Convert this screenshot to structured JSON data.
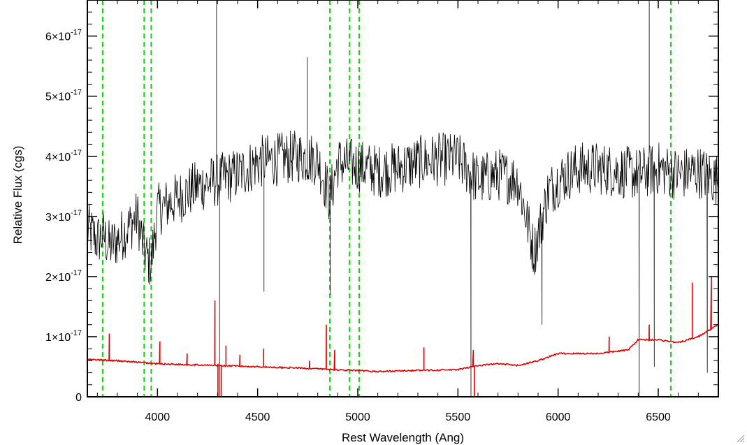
{
  "chart_data": {
    "type": "line",
    "title": "",
    "xlabel": "Rest Wavelength (Ang)",
    "ylabel": "Relative Flux (cgs)",
    "xlim": [
      3650,
      6800
    ],
    "ylim": [
      0,
      6.6e-17
    ],
    "x_ticks": [
      {
        "value": 4000,
        "label": "4000"
      },
      {
        "value": 4500,
        "label": "4500"
      },
      {
        "value": 5000,
        "label": "5000"
      },
      {
        "value": 5500,
        "label": "5500"
      },
      {
        "value": 6000,
        "label": "6000"
      },
      {
        "value": 6500,
        "label": "6500"
      }
    ],
    "y_ticks": [
      {
        "value": 0,
        "mantissa": "0",
        "exponent": ""
      },
      {
        "value": 1e-17,
        "mantissa": "1×10",
        "exponent": "-17"
      },
      {
        "value": 2e-17,
        "mantissa": "2×10",
        "exponent": "-17"
      },
      {
        "value": 3e-17,
        "mantissa": "3×10",
        "exponent": "-17"
      },
      {
        "value": 4e-17,
        "mantissa": "4×10",
        "exponent": "-17"
      },
      {
        "value": 5e-17,
        "mantissa": "5×10",
        "exponent": "-17"
      },
      {
        "value": 6e-17,
        "mantissa": "6×10",
        "exponent": "-17"
      }
    ],
    "grid": false,
    "legend": "none",
    "series": [
      {
        "color": "#000000",
        "style": "noisy spectrum",
        "x": [
          3650,
          3700,
          3727,
          3760,
          3800,
          3850,
          3900,
          3935,
          3968,
          4000,
          4100,
          4200,
          4300,
          4400,
          4500,
          4600,
          4700,
          4800,
          4861,
          4900,
          5000,
          5100,
          5200,
          5300,
          5400,
          5500,
          5600,
          5700,
          5800,
          5880,
          5950,
          6000,
          6100,
          6200,
          6300,
          6400,
          6500,
          6600,
          6700,
          6800
        ],
        "values": [
          2.8e-17,
          2.6e-17,
          2.7e-17,
          2.5e-17,
          2.6e-17,
          2.8e-17,
          3e-17,
          2.4e-17,
          2.2e-17,
          3.1e-17,
          3.3e-17,
          3.5e-17,
          3.6e-17,
          3.7e-17,
          3.9e-17,
          3.95e-17,
          4e-17,
          3.95e-17,
          3.3e-17,
          3.9e-17,
          3.85e-17,
          3.75e-17,
          3.8e-17,
          3.9e-17,
          3.95e-17,
          3.95e-17,
          3.6e-17,
          3.7e-17,
          3.6e-17,
          2.4e-17,
          3.4e-17,
          3.6e-17,
          3.8e-17,
          3.8e-17,
          3.75e-17,
          3.7e-17,
          3.8e-17,
          3.7e-17,
          3.75e-17,
          3.6e-17
        ],
        "noise_amplitude": 4.5e-18,
        "spikes": [
          {
            "x": 4295,
            "y": 6.6e-17
          },
          {
            "x": 4310,
            "y": 0.0
          },
          {
            "x": 4532,
            "y": 1.75e-17
          },
          {
            "x": 4748,
            "y": 5.65e-17
          },
          {
            "x": 4862,
            "y": 1.7e-17
          },
          {
            "x": 5565,
            "y": 0.0
          },
          {
            "x": 5920,
            "y": 1.2e-17
          },
          {
            "x": 6405,
            "y": 0.0
          },
          {
            "x": 6455,
            "y": 6.6e-17
          },
          {
            "x": 6480,
            "y": 5e-18
          },
          {
            "x": 6745,
            "y": 4e-18
          }
        ]
      },
      {
        "color": "#e00000",
        "style": "sky/error spectrum",
        "x": [
          3650,
          3800,
          4000,
          4200,
          4300,
          4500,
          4700,
          4900,
          5100,
          5300,
          5500,
          5600,
          5700,
          5800,
          5900,
          6000,
          6200,
          6350,
          6400,
          6500,
          6600,
          6700,
          6800
        ],
        "values": [
          6.2e-18,
          6e-18,
          5.5e-18,
          5.3e-18,
          5.2e-18,
          5e-18,
          4.8e-18,
          4.5e-18,
          4.2e-18,
          4.4e-18,
          4.5e-18,
          5.2e-18,
          5.5e-18,
          5.2e-18,
          6e-18,
          7.2e-18,
          7.2e-18,
          7.8e-18,
          9.5e-18,
          9.5e-18,
          9e-18,
          1e-17,
          1.2e-17
        ],
        "noise_amplitude": 1.2e-19,
        "spikes": [
          {
            "x": 3760,
            "y": 1.05e-17
          },
          {
            "x": 4012,
            "y": 9.2e-18
          },
          {
            "x": 4148,
            "y": 7.2e-18
          },
          {
            "x": 4287,
            "y": 1.6e-17
          },
          {
            "x": 4302,
            "y": -2e-18
          },
          {
            "x": 4318,
            "y": -2e-18
          },
          {
            "x": 4342,
            "y": 8.5e-18
          },
          {
            "x": 4412,
            "y": 7e-18
          },
          {
            "x": 4530,
            "y": 8e-18
          },
          {
            "x": 4760,
            "y": 6e-18
          },
          {
            "x": 4843,
            "y": 1.2e-17
          },
          {
            "x": 4885,
            "y": 7.8e-18
          },
          {
            "x": 5330,
            "y": 8.2e-18
          },
          {
            "x": 5577,
            "y": 7.8e-18
          },
          {
            "x": 5582,
            "y": -2e-18
          },
          {
            "x": 6255,
            "y": 1e-17
          },
          {
            "x": 6455,
            "y": 1.2e-17
          },
          {
            "x": 6670,
            "y": 1.9e-17
          },
          {
            "x": 6765,
            "y": 2e-17
          }
        ]
      }
    ],
    "reference_lines": {
      "color": "#22cc22",
      "style": "dashed",
      "x": [
        3727,
        3934,
        3969,
        4861,
        4959,
        5007,
        6563
      ]
    }
  }
}
